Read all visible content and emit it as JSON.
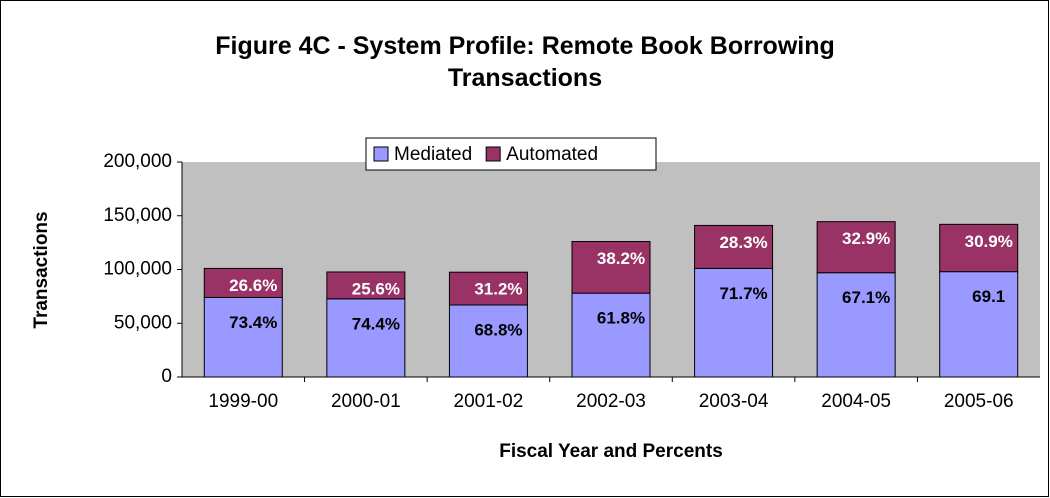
{
  "chart_data": {
    "type": "stacked_bar",
    "title": "Figure 4C - System Profile: Remote Book Borrowing Transactions",
    "x_label": "Fiscal Year and Percents",
    "y_label": "Transactions",
    "categories": [
      "1999-00",
      "2000-01",
      "2001-02",
      "2002-03",
      "2003-04",
      "2004-05",
      "2005-06"
    ],
    "series": [
      {
        "name": "Mediated",
        "color": "#9999ff",
        "values": [
          74000,
          72700,
          67000,
          78000,
          101000,
          97000,
          98000
        ],
        "percent_labels": [
          "73.4%",
          "74.4%",
          "68.8%",
          "61.8%",
          "71.7%",
          "67.1%",
          "69.1"
        ]
      },
      {
        "name": "Automated",
        "color": "#993366",
        "values": [
          27000,
          25000,
          30500,
          48000,
          40000,
          47500,
          44000
        ],
        "percent_labels": [
          "26.6%",
          "25.6%",
          "31.2%",
          "38.2%",
          "28.3%",
          "32.9%",
          "30.9%"
        ]
      }
    ],
    "ylim": [
      0,
      200000
    ],
    "yticks": [
      0,
      {
        "value": 50000,
        "label": "50,000"
      },
      {
        "value": 100000,
        "label": "100,000"
      },
      {
        "value": 150000,
        "label": "150,000"
      },
      {
        "value": 200000,
        "label": "200,000"
      }
    ],
    "legend": "top"
  }
}
